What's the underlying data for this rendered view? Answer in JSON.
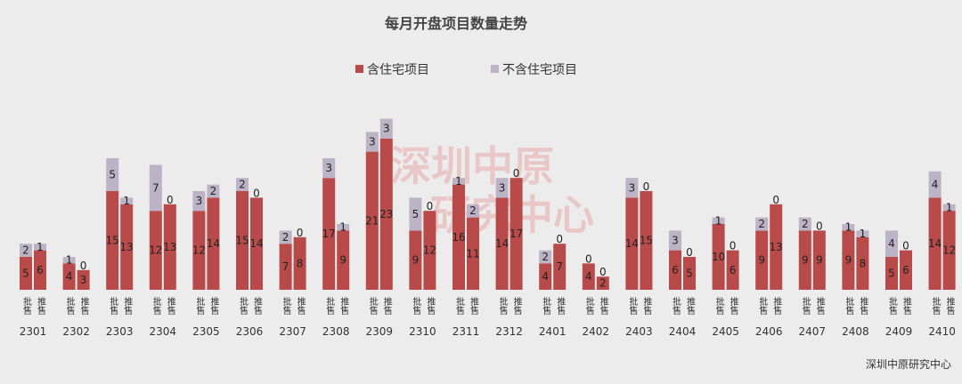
{
  "chart_data": {
    "type": "bar",
    "stacked": true,
    "title": "每月开盘项目数量走势",
    "categories": [
      "2301",
      "2302",
      "2303",
      "2304",
      "2305",
      "2306",
      "2307",
      "2308",
      "2309",
      "2310",
      "2311",
      "2312",
      "2401",
      "2402",
      "2403",
      "2404",
      "2405",
      "2406",
      "2407",
      "2408",
      "2409",
      "2410"
    ],
    "sub_categories": [
      "批售",
      "推售"
    ],
    "series": [
      {
        "name": "含住宅项目",
        "color": "#b94a4a",
        "pi_shou": [
          5,
          4,
          15,
          12,
          12,
          15,
          7,
          17,
          21,
          9,
          16,
          14,
          4,
          4,
          14,
          6,
          10,
          9,
          9,
          9,
          5,
          14
        ],
        "tui_shou": [
          6,
          3,
          13,
          13,
          14,
          14,
          8,
          9,
          23,
          12,
          11,
          17,
          7,
          2,
          15,
          5,
          6,
          13,
          9,
          8,
          6,
          12
        ]
      },
      {
        "name": "不含住宅项目",
        "color": "#bcb3c6",
        "pi_shou": [
          2,
          1,
          5,
          7,
          3,
          2,
          2,
          3,
          3,
          5,
          1,
          3,
          2,
          0,
          3,
          3,
          1,
          2,
          2,
          1,
          4,
          4
        ],
        "tui_shou": [
          1,
          0,
          1,
          0,
          2,
          0,
          0,
          1,
          3,
          0,
          2,
          0,
          0,
          0,
          0,
          0,
          0,
          0,
          0,
          1,
          0,
          1
        ]
      }
    ],
    "legend_position": "top-center",
    "grid": false,
    "watermark": [
      "深圳中原",
      "研究中心"
    ],
    "source": "深圳中原研究中心"
  }
}
